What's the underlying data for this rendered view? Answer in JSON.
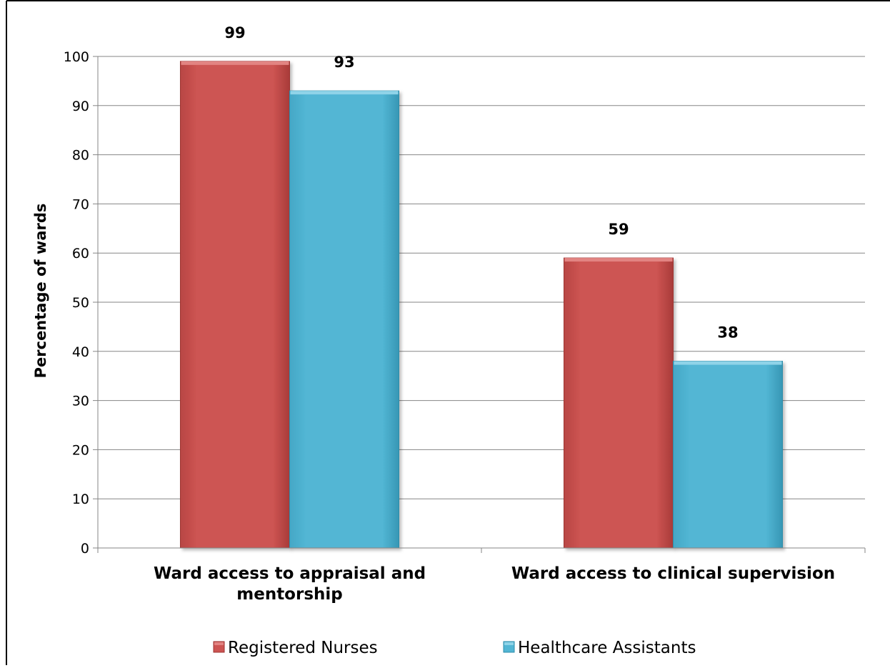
{
  "chart_data": {
    "type": "bar",
    "categories": [
      [
        "Ward access to appraisal and",
        "mentorship"
      ],
      [
        "Ward access to clinical supervision"
      ]
    ],
    "series": [
      {
        "name": "Registered Nurses",
        "values": [
          99,
          59
        ],
        "color": "#cd5452",
        "edge": "#9e3533",
        "top": "#e28482"
      },
      {
        "name": "Healthcare Assistants",
        "values": [
          93,
          38
        ],
        "color": "#52b6d4",
        "edge": "#2f8eab",
        "top": "#8fd3e8"
      }
    ],
    "data_labels": [
      [
        "99",
        "59"
      ],
      [
        "93",
        "38"
      ]
    ],
    "ylabel": "Percentage of wards",
    "ylim": [
      0,
      100
    ],
    "yticks": [
      "0",
      "10",
      "20",
      "30",
      "40",
      "50",
      "60",
      "70",
      "80",
      "90",
      "100"
    ],
    "grid": true,
    "legend_position": "bottom"
  }
}
